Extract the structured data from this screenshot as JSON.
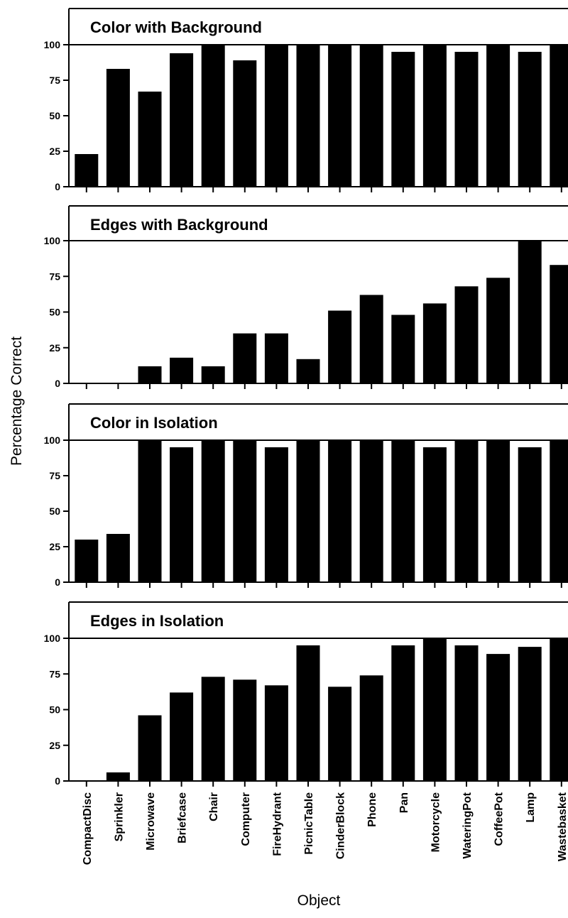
{
  "chart_data": {
    "type": "bar",
    "xlabel": "Object",
    "ylabel": "Percentage Correct",
    "ylim": [
      0,
      125
    ],
    "yticks": [
      "0",
      "25",
      "50",
      "75",
      "100"
    ],
    "categories": [
      "CompactDisc",
      "Sprinkler",
      "Microwave",
      "Briefcase",
      "Chair",
      "Computer",
      "FireHydrant",
      "PicnicTable",
      "CinderBlock",
      "Phone",
      "Pan",
      "Motorcycle",
      "WateringPot",
      "CoffeePot",
      "Lamp",
      "Wastebasket"
    ],
    "panels": [
      {
        "title": "Color with Background",
        "values": [
          23,
          83,
          67,
          94,
          100,
          89,
          100,
          100,
          100,
          100,
          95,
          100,
          95,
          100,
          95,
          100
        ]
      },
      {
        "title": "Edges with Background",
        "values": [
          0,
          0,
          12,
          18,
          12,
          35,
          35,
          17,
          51,
          62,
          48,
          56,
          68,
          74,
          100,
          83
        ]
      },
      {
        "title": "Color in Isolation",
        "values": [
          30,
          34,
          100,
          95,
          100,
          100,
          95,
          100,
          100,
          100,
          100,
          95,
          100,
          100,
          95,
          100
        ]
      },
      {
        "title": "Edges in Isolation",
        "values": [
          0,
          6,
          46,
          62,
          73,
          71,
          67,
          95,
          66,
          74,
          95,
          100,
          95,
          89,
          94,
          100
        ]
      }
    ]
  }
}
